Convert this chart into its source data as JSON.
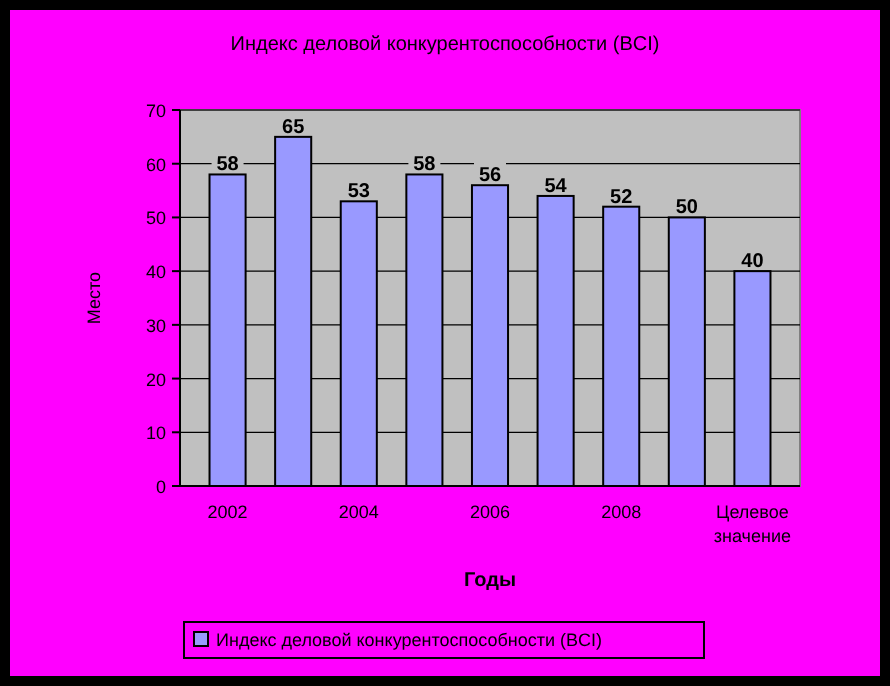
{
  "chart_data": {
    "type": "bar",
    "title": "Индекс деловой конкурентоспособности (BCI)",
    "xlabel": "Годы",
    "ylabel": "Место",
    "categories": [
      "2002",
      null,
      "2004",
      null,
      "2006",
      null,
      "2008",
      null,
      "Целевое значение"
    ],
    "series": [
      {
        "name": "Индекс деловой конкурентоспособности (BCI)",
        "color": "#9999ff",
        "values": [
          58,
          65,
          53,
          58,
          56,
          54,
          52,
          50,
          40
        ]
      }
    ],
    "ylim": [
      0,
      70
    ],
    "yticks": [
      0,
      10,
      20,
      30,
      40,
      50,
      60,
      70
    ],
    "grid": "y",
    "legend": "bottom",
    "data_labels": true
  }
}
